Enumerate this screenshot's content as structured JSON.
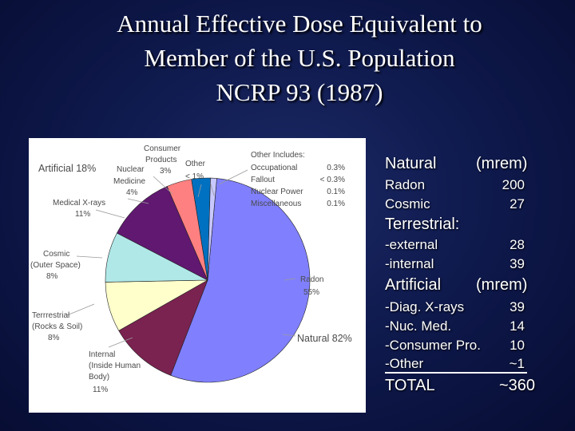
{
  "title": {
    "line1": "Annual Effective Dose Equivalent to",
    "line2": "Member of the U.S. Population",
    "line3": "NCRP 93 (1987)"
  },
  "chart_data": {
    "type": "pie",
    "slices": [
      {
        "label": "Radon",
        "value": 55,
        "value_label": "55%",
        "color": "#8080ff"
      },
      {
        "label": "Internal (Inside Human Body)",
        "value": 11,
        "value_label": "11%",
        "color": "#7a2250"
      },
      {
        "label": "Terrrestrial (Rocks & Soil)",
        "value": 8,
        "value_label": "8%",
        "color": "#ffffcc"
      },
      {
        "label": "Cosmic (Outer Space)",
        "value": 8,
        "value_label": "8%",
        "color": "#b0e8e8"
      },
      {
        "label": "Medical X-rays",
        "value": 11,
        "value_label": "11%",
        "color": "#601870"
      },
      {
        "label": "Nuclear Medicine",
        "value": 4,
        "value_label": "4%",
        "color": "#ff8080"
      },
      {
        "label": "Consumer Products",
        "value": 3,
        "value_label": "3%",
        "color": "#0070c0"
      },
      {
        "label": "Other",
        "value": 1,
        "value_label": "< 1%",
        "color": "#c8c8ff"
      }
    ],
    "group_labels": {
      "natural": "Natural 82%",
      "artificial": "Artificial 18%"
    },
    "other_includes": {
      "title": "Other Includes:",
      "items": [
        {
          "name": "Occupational",
          "value": "0.3%"
        },
        {
          "name": "Fallout",
          "value": "< 0.3%"
        },
        {
          "name": "Nuclear Power",
          "value": "0.1%"
        },
        {
          "name": "Miscellaneous",
          "value": "0.1%"
        }
      ]
    }
  },
  "table": {
    "natural_header": "Natural",
    "unit_header": "(mrem)",
    "natural_rows": [
      {
        "label": "Radon",
        "value": "200"
      },
      {
        "label": "Cosmic",
        "value": "27"
      }
    ],
    "terrestrial_header": "Terrestrial:",
    "terrestrial_rows": [
      {
        "label": "-external",
        "value": "28"
      },
      {
        "label": "-internal",
        "value": "39"
      }
    ],
    "artificial_header": "Artificial",
    "artificial_unit": "(mrem)",
    "artificial_rows": [
      {
        "label": "-Diag. X-rays",
        "value": "39"
      },
      {
        "label": "-Nuc. Med.",
        "value": "14"
      },
      {
        "label": "-Consumer Pro.",
        "value": "10"
      },
      {
        "label": "-Other",
        "value": "~1"
      }
    ],
    "total_label": "TOTAL",
    "total_value": "~360"
  }
}
